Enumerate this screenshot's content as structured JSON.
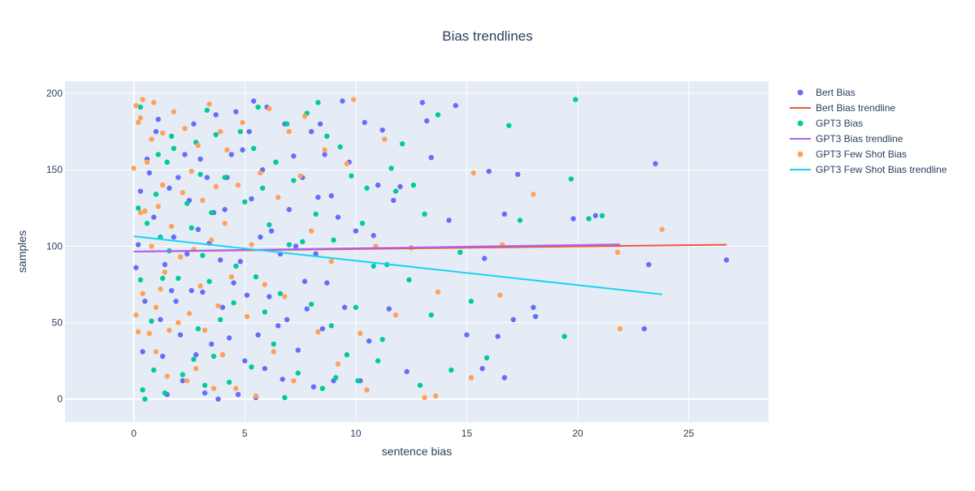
{
  "chart_data": {
    "type": "scatter",
    "title": "Bias trendlines",
    "xlabel": "sentence bias",
    "ylabel": "samples",
    "xlim": [
      -3.1,
      28.6
    ],
    "ylim": [
      -15,
      208
    ],
    "x_ticks": [
      0,
      5,
      10,
      15,
      20,
      25
    ],
    "y_ticks": [
      0,
      50,
      100,
      150,
      200
    ],
    "grid": true,
    "legend_position": "right",
    "colors": {
      "plot_bg": "#e5ecf6",
      "grid": "#ffffff",
      "text": "#2a3f5f"
    },
    "series": [
      {
        "name": "Bert Bias",
        "kind": "markers",
        "color": "#636efa",
        "points": [
          [
            0.1,
            86
          ],
          [
            0.2,
            101
          ],
          [
            0.3,
            136
          ],
          [
            0.4,
            31
          ],
          [
            0.5,
            64
          ],
          [
            0.6,
            157
          ],
          [
            0.7,
            148
          ],
          [
            0.9,
            119
          ],
          [
            1.0,
            175
          ],
          [
            1.1,
            183
          ],
          [
            1.2,
            52
          ],
          [
            1.3,
            28
          ],
          [
            1.4,
            88
          ],
          [
            1.5,
            3
          ],
          [
            1.6,
            138
          ],
          [
            1.7,
            71
          ],
          [
            1.8,
            106
          ],
          [
            1.9,
            64
          ],
          [
            2.0,
            145
          ],
          [
            2.1,
            42
          ],
          [
            2.2,
            12
          ],
          [
            2.3,
            160
          ],
          [
            2.4,
            95
          ],
          [
            2.5,
            130
          ],
          [
            2.6,
            71
          ],
          [
            2.7,
            180
          ],
          [
            2.8,
            29
          ],
          [
            2.9,
            111
          ],
          [
            3.0,
            157
          ],
          [
            3.1,
            70
          ],
          [
            3.2,
            4
          ],
          [
            3.3,
            145
          ],
          [
            3.4,
            102
          ],
          [
            3.5,
            36
          ],
          [
            3.6,
            122
          ],
          [
            3.7,
            186
          ],
          [
            3.8,
            0
          ],
          [
            3.9,
            91
          ],
          [
            4.0,
            60
          ],
          [
            4.1,
            124
          ],
          [
            4.2,
            145
          ],
          [
            4.3,
            40
          ],
          [
            4.4,
            160
          ],
          [
            4.5,
            76
          ],
          [
            4.6,
            188
          ],
          [
            4.7,
            3
          ],
          [
            4.8,
            90
          ],
          [
            4.9,
            163
          ],
          [
            5.0,
            25
          ],
          [
            5.1,
            68
          ],
          [
            5.2,
            175
          ],
          [
            5.3,
            131
          ],
          [
            5.4,
            195
          ],
          [
            5.5,
            1
          ],
          [
            5.6,
            42
          ],
          [
            5.7,
            106
          ],
          [
            5.8,
            150
          ],
          [
            5.9,
            20
          ],
          [
            6.0,
            191
          ],
          [
            6.1,
            67
          ],
          [
            6.2,
            110
          ],
          [
            6.4,
            155
          ],
          [
            6.5,
            48
          ],
          [
            6.6,
            95
          ],
          [
            6.7,
            13
          ],
          [
            6.8,
            180
          ],
          [
            6.9,
            52
          ],
          [
            7.0,
            124
          ],
          [
            7.2,
            159
          ],
          [
            7.3,
            100
          ],
          [
            7.4,
            32
          ],
          [
            7.6,
            145
          ],
          [
            7.7,
            77
          ],
          [
            7.8,
            59
          ],
          [
            8.0,
            175
          ],
          [
            8.1,
            8
          ],
          [
            8.2,
            95
          ],
          [
            8.3,
            132
          ],
          [
            8.4,
            180
          ],
          [
            8.5,
            46
          ],
          [
            8.6,
            160
          ],
          [
            8.7,
            76
          ],
          [
            8.9,
            133
          ],
          [
            9.0,
            12
          ],
          [
            9.2,
            119
          ],
          [
            9.4,
            195
          ],
          [
            9.5,
            60
          ],
          [
            9.7,
            155
          ],
          [
            10.0,
            110
          ],
          [
            10.2,
            12
          ],
          [
            10.4,
            181
          ],
          [
            10.6,
            38
          ],
          [
            10.8,
            107
          ],
          [
            11.0,
            140
          ],
          [
            11.2,
            176
          ],
          [
            11.5,
            59
          ],
          [
            11.7,
            130
          ],
          [
            12.0,
            139
          ],
          [
            12.3,
            18
          ],
          [
            12.5,
            99
          ],
          [
            13.0,
            194
          ],
          [
            13.2,
            182
          ],
          [
            13.4,
            158
          ],
          [
            14.2,
            117
          ],
          [
            14.5,
            192
          ],
          [
            15.0,
            42
          ],
          [
            15.7,
            20
          ],
          [
            15.8,
            92
          ],
          [
            16.0,
            149
          ],
          [
            16.4,
            41
          ],
          [
            16.7,
            14
          ],
          [
            16.7,
            121
          ],
          [
            17.1,
            52
          ],
          [
            17.3,
            147
          ],
          [
            18.0,
            60
          ],
          [
            18.1,
            54
          ],
          [
            19.8,
            118
          ],
          [
            20.8,
            120
          ],
          [
            23.0,
            46
          ],
          [
            23.2,
            88
          ],
          [
            23.5,
            154
          ],
          [
            26.7,
            91
          ]
        ]
      },
      {
        "name": "Bert Bias trendline",
        "kind": "line",
        "color": "#ef553b",
        "points": [
          [
            0.0,
            96.5
          ],
          [
            26.7,
            101.0
          ]
        ]
      },
      {
        "name": "GPT3 Bias",
        "kind": "markers",
        "color": "#00cc96",
        "points": [
          [
            0.2,
            125
          ],
          [
            0.3,
            78
          ],
          [
            0.3,
            191
          ],
          [
            0.4,
            6
          ],
          [
            0.5,
            0
          ],
          [
            0.6,
            115
          ],
          [
            0.8,
            51
          ],
          [
            0.9,
            19
          ],
          [
            1.0,
            134
          ],
          [
            1.1,
            160
          ],
          [
            1.2,
            106
          ],
          [
            1.3,
            79
          ],
          [
            1.4,
            4
          ],
          [
            1.5,
            155
          ],
          [
            1.6,
            97
          ],
          [
            1.7,
            172
          ],
          [
            1.8,
            164
          ],
          [
            2.0,
            79
          ],
          [
            2.2,
            16
          ],
          [
            2.4,
            128
          ],
          [
            2.6,
            112
          ],
          [
            2.7,
            26
          ],
          [
            2.8,
            168
          ],
          [
            2.9,
            46
          ],
          [
            3.0,
            147
          ],
          [
            3.1,
            94
          ],
          [
            3.2,
            9
          ],
          [
            3.3,
            189
          ],
          [
            3.4,
            77
          ],
          [
            3.5,
            122
          ],
          [
            3.6,
            28
          ],
          [
            3.7,
            173
          ],
          [
            3.9,
            52
          ],
          [
            4.1,
            145
          ],
          [
            4.3,
            11
          ],
          [
            4.5,
            63
          ],
          [
            4.6,
            87
          ],
          [
            4.8,
            175
          ],
          [
            5.0,
            129
          ],
          [
            5.3,
            21
          ],
          [
            5.4,
            164
          ],
          [
            5.5,
            80
          ],
          [
            5.6,
            191
          ],
          [
            5.8,
            138
          ],
          [
            5.9,
            57
          ],
          [
            6.1,
            114
          ],
          [
            6.3,
            36
          ],
          [
            6.4,
            155
          ],
          [
            6.6,
            69
          ],
          [
            6.8,
            1
          ],
          [
            6.9,
            180
          ],
          [
            7.0,
            101
          ],
          [
            7.2,
            143
          ],
          [
            7.4,
            17
          ],
          [
            7.6,
            103
          ],
          [
            7.8,
            187
          ],
          [
            8.0,
            62
          ],
          [
            8.2,
            121
          ],
          [
            8.3,
            194
          ],
          [
            8.5,
            7
          ],
          [
            8.7,
            172
          ],
          [
            8.9,
            48
          ],
          [
            9.0,
            104
          ],
          [
            9.1,
            14
          ],
          [
            9.3,
            165
          ],
          [
            9.6,
            29
          ],
          [
            9.8,
            146
          ],
          [
            10.0,
            60
          ],
          [
            10.1,
            12
          ],
          [
            10.3,
            115
          ],
          [
            10.5,
            138
          ],
          [
            10.8,
            87
          ],
          [
            11.0,
            25
          ],
          [
            11.2,
            39
          ],
          [
            11.4,
            88
          ],
          [
            11.6,
            151
          ],
          [
            11.8,
            136
          ],
          [
            12.1,
            167
          ],
          [
            12.4,
            78
          ],
          [
            12.6,
            140
          ],
          [
            12.9,
            9
          ],
          [
            13.1,
            121
          ],
          [
            13.4,
            55
          ],
          [
            13.7,
            186
          ],
          [
            14.3,
            19
          ],
          [
            14.7,
            96
          ],
          [
            15.2,
            64
          ],
          [
            15.9,
            27
          ],
          [
            16.9,
            179
          ],
          [
            17.4,
            117
          ],
          [
            19.4,
            41
          ],
          [
            19.7,
            144
          ],
          [
            19.9,
            196
          ],
          [
            20.5,
            118
          ],
          [
            21.1,
            120
          ]
        ]
      },
      {
        "name": "GPT3 Bias trendline",
        "kind": "line",
        "color": "#ab63fa",
        "points": [
          [
            0.0,
            96.5
          ],
          [
            21.9,
            101.2
          ]
        ]
      },
      {
        "name": "GPT3 Few Shot Bias",
        "kind": "markers",
        "color": "#ffa15a",
        "points": [
          [
            0.0,
            151
          ],
          [
            0.1,
            192
          ],
          [
            0.1,
            55
          ],
          [
            0.2,
            44
          ],
          [
            0.2,
            181
          ],
          [
            0.3,
            122
          ],
          [
            0.3,
            184
          ],
          [
            0.4,
            69
          ],
          [
            0.4,
            196
          ],
          [
            0.5,
            123
          ],
          [
            0.6,
            155
          ],
          [
            0.7,
            43
          ],
          [
            0.8,
            170
          ],
          [
            0.8,
            100
          ],
          [
            0.9,
            194
          ],
          [
            1.0,
            60
          ],
          [
            1.0,
            31
          ],
          [
            1.1,
            126
          ],
          [
            1.2,
            72
          ],
          [
            1.3,
            140
          ],
          [
            1.3,
            174
          ],
          [
            1.4,
            83
          ],
          [
            1.5,
            15
          ],
          [
            1.6,
            45
          ],
          [
            1.7,
            113
          ],
          [
            1.8,
            188
          ],
          [
            2.0,
            50
          ],
          [
            2.1,
            93
          ],
          [
            2.2,
            135
          ],
          [
            2.3,
            177
          ],
          [
            2.4,
            12
          ],
          [
            2.5,
            56
          ],
          [
            2.6,
            149
          ],
          [
            2.7,
            98
          ],
          [
            2.8,
            20
          ],
          [
            2.9,
            166
          ],
          [
            3.0,
            74
          ],
          [
            3.1,
            130
          ],
          [
            3.2,
            45
          ],
          [
            3.4,
            193
          ],
          [
            3.5,
            104
          ],
          [
            3.6,
            7
          ],
          [
            3.7,
            139
          ],
          [
            3.8,
            61
          ],
          [
            3.9,
            175
          ],
          [
            4.0,
            29
          ],
          [
            4.1,
            115
          ],
          [
            4.2,
            163
          ],
          [
            4.4,
            80
          ],
          [
            4.6,
            7
          ],
          [
            4.7,
            140
          ],
          [
            4.9,
            181
          ],
          [
            5.1,
            54
          ],
          [
            5.3,
            101
          ],
          [
            5.5,
            2
          ],
          [
            5.7,
            148
          ],
          [
            5.9,
            75
          ],
          [
            6.1,
            190
          ],
          [
            6.3,
            31
          ],
          [
            6.5,
            132
          ],
          [
            6.8,
            67
          ],
          [
            7.0,
            175
          ],
          [
            7.2,
            12
          ],
          [
            7.5,
            146
          ],
          [
            7.7,
            185
          ],
          [
            8.0,
            110
          ],
          [
            8.3,
            44
          ],
          [
            8.6,
            163
          ],
          [
            8.9,
            90
          ],
          [
            9.2,
            23
          ],
          [
            9.6,
            154
          ],
          [
            9.9,
            196
          ],
          [
            10.2,
            43
          ],
          [
            10.5,
            6
          ],
          [
            10.9,
            100
          ],
          [
            11.3,
            170
          ],
          [
            11.8,
            55
          ],
          [
            12.5,
            99
          ],
          [
            13.1,
            1
          ],
          [
            13.6,
            2
          ],
          [
            13.7,
            70
          ],
          [
            15.2,
            14
          ],
          [
            15.3,
            148
          ],
          [
            16.5,
            68
          ],
          [
            16.6,
            101
          ],
          [
            18.0,
            134
          ],
          [
            21.8,
            96
          ],
          [
            21.9,
            46
          ],
          [
            23.8,
            111
          ]
        ]
      },
      {
        "name": "GPT3 Few Shot Bias trendline",
        "kind": "line",
        "color": "#19d3f3",
        "points": [
          [
            0.0,
            106.5
          ],
          [
            23.8,
            68.5
          ]
        ]
      }
    ]
  }
}
